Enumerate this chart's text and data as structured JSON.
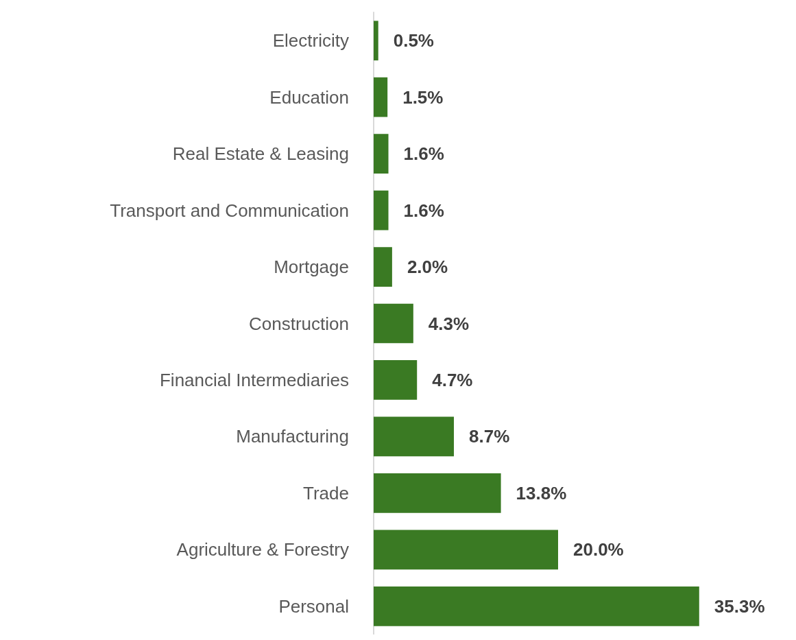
{
  "chart_data": {
    "type": "bar",
    "orientation": "horizontal",
    "categories": [
      "Electricity",
      "Education",
      "Real Estate & Leasing",
      "Transport and Communication",
      "Mortgage",
      "Construction",
      "Financial Intermediaries",
      "Manufacturing",
      "Trade",
      "Agriculture & Forestry",
      "Personal"
    ],
    "values": [
      0.5,
      1.5,
      1.6,
      1.6,
      2.0,
      4.3,
      4.7,
      8.7,
      13.8,
      20.0,
      35.3
    ],
    "value_labels": [
      "0.5%",
      "1.5%",
      "1.6%",
      "1.6%",
      "2.0%",
      "4.3%",
      "4.7%",
      "8.7%",
      "13.8%",
      "20.0%",
      "35.3%"
    ],
    "color": "#3a7a23"
  }
}
